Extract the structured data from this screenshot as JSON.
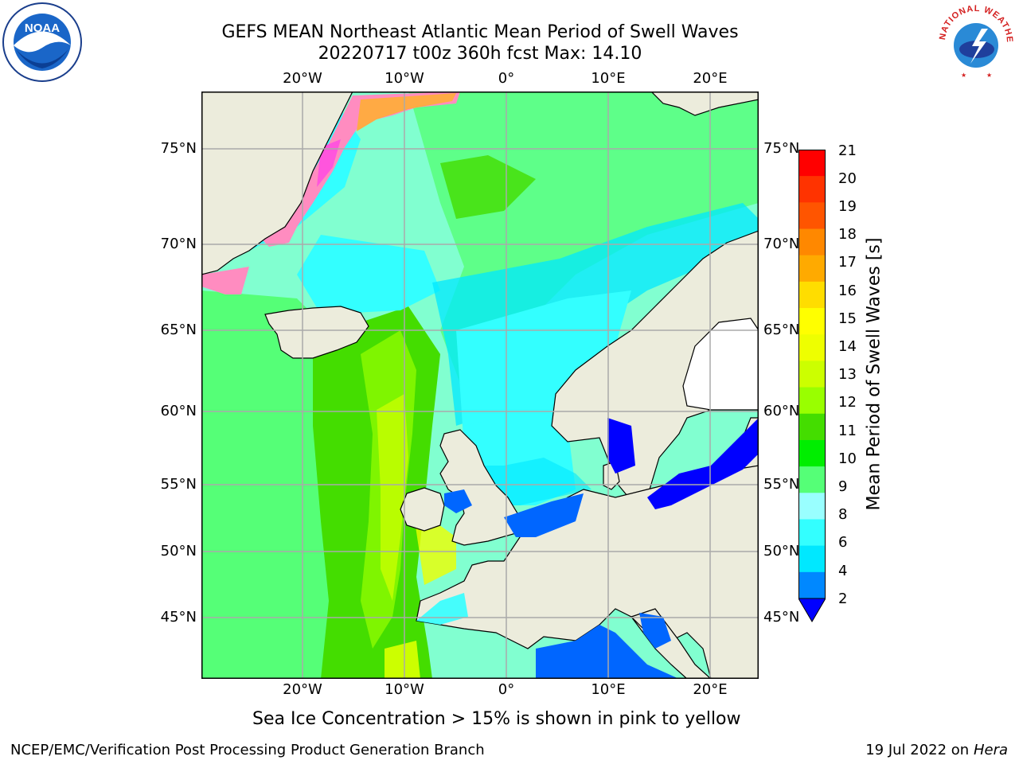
{
  "title": {
    "line1": "GEFS MEAN Northeast Atlantic Mean Period of Swell Waves",
    "line2": "20220717 t00z 360h fcst   Max: 14.10"
  },
  "logos": {
    "noaa": {
      "text": "NOAA",
      "ring_text": "NATIONAL OCEANIC AND ATMOSPHERIC ADMINISTRATION · U.S. DEPARTMENT OF COMMERCE"
    },
    "nws": {
      "ring_text": "NATIONAL WEATHER SERVICE"
    }
  },
  "map": {
    "lon_labels": [
      "20°W",
      "10°W",
      "0°",
      "10°E",
      "20°E"
    ],
    "lat_labels": [
      "75°N",
      "70°N",
      "65°N",
      "60°N",
      "55°N",
      "50°N",
      "45°N"
    ],
    "colors": {
      "land": "#ececdc",
      "gridline": "#aaaaaa",
      "coast": "#000000"
    }
  },
  "colorbar": {
    "title": "Mean Period of Swell Waves [s]",
    "labels": [
      "21",
      "20",
      "19",
      "18",
      "17",
      "16",
      "15",
      "14",
      "13",
      "12",
      "11",
      "10",
      "9",
      "8",
      "6",
      "4",
      "2"
    ],
    "colors": [
      "#ff0000",
      "#ff3300",
      "#ff5500",
      "#ff8800",
      "#ffaa00",
      "#ffdd00",
      "#ffff00",
      "#eeff00",
      "#ccff00",
      "#99ff00",
      "#44dd00",
      "#00ee00",
      "#55ff77",
      "#99ffff",
      "#33ffff",
      "#00e8ff",
      "#0088ff",
      "#0000ff"
    ],
    "extend": "min"
  },
  "notes": {
    "ice": "Sea Ice Concentration > 15% is shown in pink to yellow"
  },
  "footer": {
    "left": "NCEP/EMC/Verification Post Processing Product Generation Branch",
    "date": "19 Jul 2022 on ",
    "host": "Hera"
  }
}
